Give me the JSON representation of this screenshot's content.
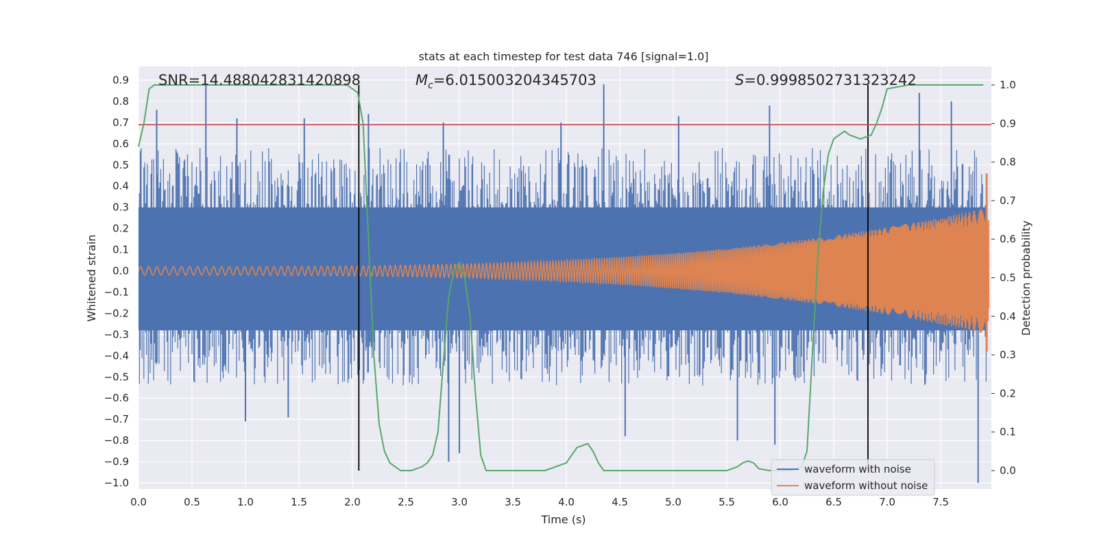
{
  "chart_data": {
    "type": "line",
    "title": "stats at each timestep for test data 746 [signal=1.0]",
    "xlabel": "Time (s)",
    "ylabel": "Whitened strain",
    "y2label": "Detection probability",
    "xlim": [
      0.0,
      8.0
    ],
    "ylim": [
      -1.09,
      1.0
    ],
    "y2lim": [
      -0.048,
      1.048
    ],
    "xticks": [
      "0.0",
      "0.5",
      "1.0",
      "1.5",
      "2.0",
      "2.5",
      "3.0",
      "3.5",
      "4.0",
      "4.5",
      "5.0",
      "5.5",
      "6.0",
      "6.5",
      "7.0",
      "7.5"
    ],
    "yticks": [
      "0.9",
      "0.8",
      "0.7",
      "0.6",
      "0.5",
      "0.4",
      "0.3",
      "0.2",
      "0.1",
      "0.0",
      "-0.1",
      "-0.2",
      "-0.3",
      "-0.4",
      "-0.5",
      "-0.6",
      "-0.7",
      "-0.8",
      "-0.9",
      "-1.0"
    ],
    "y2ticks": [
      "1.0",
      "0.9",
      "0.8",
      "0.7",
      "0.6",
      "0.5",
      "0.4",
      "0.3",
      "0.2",
      "0.1",
      "0.0"
    ],
    "annotations": {
      "snr": "SNR=14.488042831420898",
      "mc_symbol": "M",
      "mc_sub": "c",
      "mc_value": "=6.015003204345703",
      "s_symbol": "S",
      "s_value": "=0.9998502731323242"
    },
    "threshold": {
      "y": 0.69,
      "color": "#c44e52"
    },
    "vertical_markers": [
      2.06,
      6.82
    ],
    "series": [
      {
        "name": "waveform with noise",
        "color": "#4c72b0",
        "axis": "left",
        "envelope_top": 0.5,
        "envelope_bottom": -0.45,
        "spikes": [
          {
            "x": 0.17,
            "y": 0.76
          },
          {
            "x": 0.63,
            "y": 0.88
          },
          {
            "x": 0.92,
            "y": 0.72
          },
          {
            "x": 1.55,
            "y": 0.72
          },
          {
            "x": 2.15,
            "y": 0.74
          },
          {
            "x": 2.85,
            "y": 0.7
          },
          {
            "x": 3.95,
            "y": 0.7
          },
          {
            "x": 4.35,
            "y": 0.88
          },
          {
            "x": 5.05,
            "y": 0.73
          },
          {
            "x": 5.9,
            "y": 0.78
          },
          {
            "x": 7.3,
            "y": 0.84
          },
          {
            "x": 7.6,
            "y": 0.8
          },
          {
            "x": 1.0,
            "y": -0.71
          },
          {
            "x": 1.4,
            "y": -0.69
          },
          {
            "x": 2.9,
            "y": -0.9
          },
          {
            "x": 4.55,
            "y": -0.78
          },
          {
            "x": 5.95,
            "y": -0.82
          },
          {
            "x": 7.85,
            "y": -1.0
          },
          {
            "x": 5.6,
            "y": -0.8
          },
          {
            "x": 3.0,
            "y": -0.86
          }
        ]
      },
      {
        "name": "waveform without noise",
        "color": "#dd8452",
        "axis": "left",
        "amplitude_start": 0.02,
        "amplitude_end": 0.3,
        "peak_high": 0.46,
        "peak_low": -0.38
      },
      {
        "name": "detection probability",
        "color": "#55a868",
        "axis": "right",
        "x": [
          0.0,
          0.05,
          0.1,
          0.15,
          0.2,
          0.5,
          1.0,
          1.5,
          1.95,
          2.05,
          2.1,
          2.15,
          2.2,
          2.25,
          2.3,
          2.35,
          2.4,
          2.45,
          2.55,
          2.65,
          2.7,
          2.75,
          2.8,
          2.85,
          2.9,
          2.95,
          3.0,
          3.05,
          3.1,
          3.15,
          3.2,
          3.25,
          3.3,
          3.4,
          3.6,
          3.8,
          3.9,
          4.0,
          4.05,
          4.1,
          4.15,
          4.2,
          4.25,
          4.3,
          4.35,
          4.4,
          4.5,
          5.0,
          5.5,
          5.6,
          5.65,
          5.7,
          5.75,
          5.8,
          5.9,
          6.0,
          6.1,
          6.2,
          6.25,
          6.3,
          6.35,
          6.4,
          6.45,
          6.5,
          6.55,
          6.6,
          6.65,
          6.75,
          6.85,
          6.9,
          6.95,
          7.0,
          7.2,
          7.5,
          7.9
        ],
        "y": [
          0.84,
          0.9,
          0.99,
          1.0,
          1.0,
          1.0,
          1.0,
          1.0,
          1.0,
          0.98,
          0.9,
          0.6,
          0.3,
          0.12,
          0.05,
          0.02,
          0.01,
          0.0,
          0.0,
          0.01,
          0.02,
          0.04,
          0.1,
          0.28,
          0.45,
          0.52,
          0.54,
          0.5,
          0.4,
          0.2,
          0.04,
          0.0,
          0.0,
          0.0,
          0.0,
          0.0,
          0.01,
          0.02,
          0.04,
          0.06,
          0.065,
          0.07,
          0.05,
          0.02,
          0.0,
          0.0,
          0.0,
          0.0,
          0.0,
          0.01,
          0.02,
          0.025,
          0.02,
          0.005,
          0.0,
          0.0,
          0.0,
          0.01,
          0.05,
          0.3,
          0.55,
          0.72,
          0.82,
          0.86,
          0.87,
          0.88,
          0.87,
          0.86,
          0.87,
          0.9,
          0.94,
          0.99,
          1.0,
          1.0,
          1.0
        ]
      }
    ],
    "legend": [
      "waveform with noise",
      "waveform without noise"
    ],
    "legend_location": "bottom-right",
    "grid": true
  }
}
